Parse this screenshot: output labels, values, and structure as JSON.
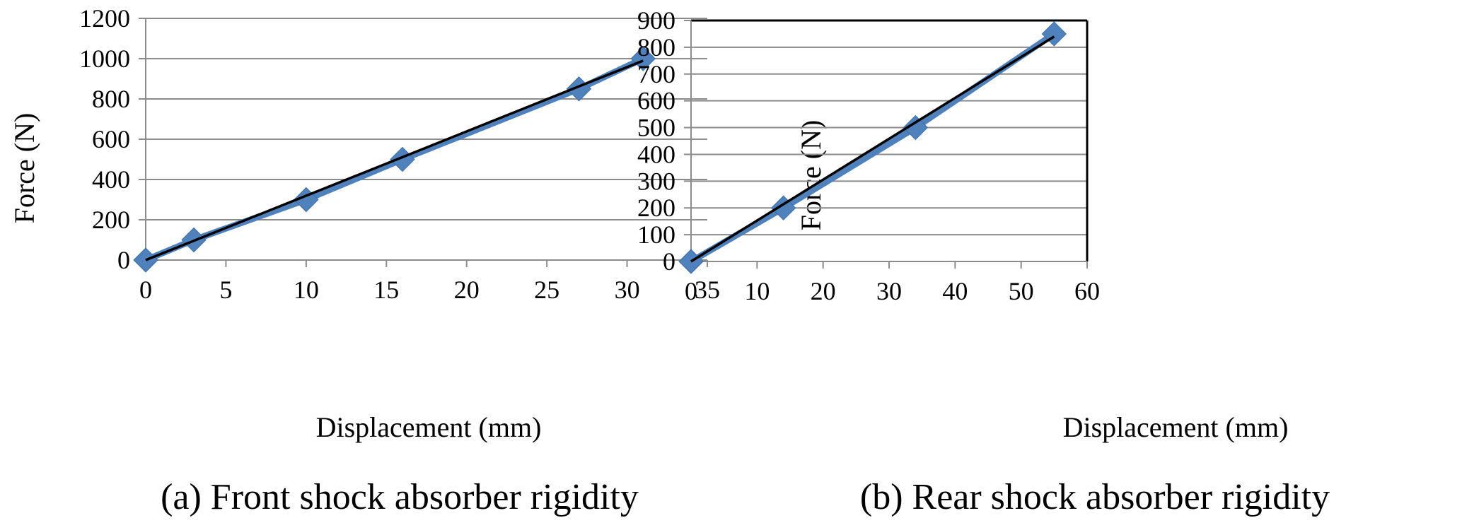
{
  "chart_data": [
    {
      "type": "scatter",
      "caption": "(a) Front shock absorber rigidity",
      "xlabel": "Displacement (mm)",
      "ylabel": "Force (N)",
      "xlim": [
        0,
        35
      ],
      "ylim": [
        0,
        1200
      ],
      "xticks": [
        0,
        5,
        10,
        15,
        20,
        25,
        30,
        35
      ],
      "yticks": [
        0,
        200,
        400,
        600,
        800,
        1000,
        1200
      ],
      "grid": "horizontal",
      "x": [
        0,
        3,
        10,
        16,
        27,
        31
      ],
      "y": [
        0,
        100,
        300,
        500,
        850,
        1000
      ],
      "trendline": {
        "x": [
          0,
          31
        ],
        "y": [
          0,
          990
        ]
      },
      "series_color": "#4f81bd",
      "trendline_color": "#000000"
    },
    {
      "type": "scatter",
      "caption": "(b) Rear shock absorber rigidity",
      "xlabel": "Displacement (mm)",
      "ylabel": "Force (N)",
      "xlim": [
        0,
        60
      ],
      "ylim": [
        0,
        900
      ],
      "xticks": [
        0,
        10,
        20,
        30,
        40,
        50,
        60
      ],
      "yticks": [
        0,
        100,
        200,
        300,
        400,
        500,
        600,
        700,
        800,
        900
      ],
      "grid": "horizontal",
      "x": [
        0,
        14,
        34,
        55
      ],
      "y": [
        0,
        200,
        500,
        850
      ],
      "trendline": {
        "x": [
          0,
          55
        ],
        "y": [
          0,
          840
        ]
      },
      "series_color": "#4f81bd",
      "trendline_color": "#000000"
    }
  ]
}
